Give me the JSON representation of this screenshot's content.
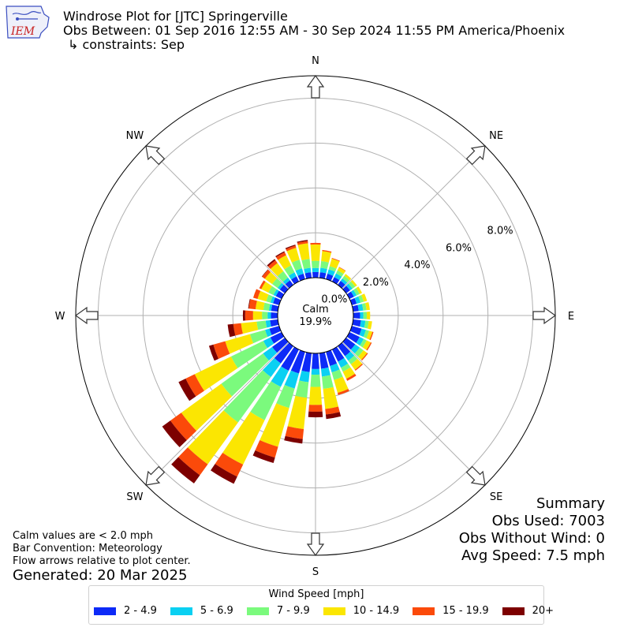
{
  "header": {
    "title": "Windrose Plot for [JTC] Springerville",
    "subtitle": "Obs Between: 01 Sep 2016 12:55 AM - 30 Sep 2024 11:55 PM America/Phoenix",
    "constraints": "↳ constraints: Sep",
    "logo_text": "IEM"
  },
  "notes": {
    "calm_note": "Calm values are < 2.0 mph",
    "bar_convention": "Bar Convention: Meteorology",
    "flow_arrows": "Flow arrows relative to plot center.",
    "generated": "Generated: 20 Mar 2025"
  },
  "summary": {
    "title": "Summary",
    "obs_used": "Obs Used: 7003",
    "obs_without_wind": "Obs Without Wind: 0",
    "avg_speed": "Avg Speed: 7.5 mph"
  },
  "chart_data": {
    "type": "windrose",
    "calm_label": "Calm",
    "calm_value": "19.9%",
    "direction_labels": [
      "N",
      "NE",
      "E",
      "SE",
      "S",
      "SW",
      "W",
      "NW"
    ],
    "radial_ticks": [
      "0.0%",
      "2.0%",
      "4.0%",
      "6.0%",
      "8.0%"
    ],
    "radial_values": [
      0,
      2,
      4,
      6,
      8
    ],
    "rmax": 9.0,
    "sectors_deg": [
      0,
      10,
      20,
      30,
      40,
      50,
      60,
      70,
      80,
      90,
      100,
      110,
      120,
      130,
      140,
      150,
      160,
      170,
      180,
      190,
      200,
      210,
      220,
      230,
      240,
      250,
      260,
      270,
      280,
      290,
      300,
      310,
      320,
      330,
      340,
      350
    ],
    "legend_title": "Wind Speed [mph]",
    "bins": [
      {
        "name": "2 - 4.9",
        "color": "#0d2af7"
      },
      {
        "name": "5 - 6.9",
        "color": "#0ad0f2"
      },
      {
        "name": "7 - 9.9",
        "color": "#7bfa7d"
      },
      {
        "name": "10 - 14.9",
        "color": "#fbe602"
      },
      {
        "name": "15 - 19.9",
        "color": "#fb4a0a"
      },
      {
        "name": "20+",
        "color": "#7d0000"
      }
    ],
    "cumulative": [
      [
        0.25,
        0.43,
        0.75,
        1.48,
        1.55,
        1.55
      ],
      [
        0.25,
        0.45,
        0.75,
        1.2,
        1.25,
        1.25
      ],
      [
        0.25,
        0.45,
        0.6,
        0.95,
        0.98,
        0.98
      ],
      [
        0.22,
        0.4,
        0.55,
        0.7,
        0.72,
        0.72
      ],
      [
        0.22,
        0.35,
        0.5,
        0.6,
        0.6,
        0.6
      ],
      [
        0.22,
        0.35,
        0.5,
        0.6,
        0.6,
        0.6
      ],
      [
        0.22,
        0.35,
        0.5,
        0.62,
        0.62,
        0.62
      ],
      [
        0.22,
        0.4,
        0.55,
        0.7,
        0.7,
        0.7
      ],
      [
        0.25,
        0.45,
        0.6,
        0.75,
        0.75,
        0.75
      ],
      [
        0.3,
        0.45,
        0.6,
        0.75,
        0.75,
        0.75
      ],
      [
        0.35,
        0.55,
        0.7,
        0.85,
        0.85,
        0.85
      ],
      [
        0.45,
        0.65,
        0.8,
        0.95,
        1.0,
        1.0
      ],
      [
        0.5,
        0.7,
        0.85,
        1.05,
        1.1,
        1.1
      ],
      [
        0.5,
        0.75,
        0.95,
        1.15,
        1.2,
        1.2
      ],
      [
        0.55,
        0.8,
        1.0,
        1.3,
        1.35,
        1.35
      ],
      [
        0.6,
        0.9,
        1.1,
        1.45,
        1.55,
        1.55
      ],
      [
        0.65,
        0.95,
        1.3,
        1.9,
        2.0,
        2.0
      ],
      [
        0.7,
        1.05,
        1.6,
        2.5,
        2.75,
        2.95
      ],
      [
        0.7,
        0.95,
        1.5,
        2.3,
        2.6,
        2.85
      ],
      [
        0.85,
        1.3,
        2.0,
        3.4,
        3.85,
        4.05
      ],
      [
        1.0,
        1.7,
        2.6,
        4.4,
        4.9,
        5.15
      ],
      [
        1.05,
        1.85,
        3.5,
        5.7,
        6.3,
        6.65
      ],
      [
        0.95,
        1.7,
        4.2,
        6.5,
        7.1,
        7.55
      ],
      [
        0.7,
        1.2,
        3.5,
        5.7,
        6.3,
        6.75
      ],
      [
        0.55,
        0.9,
        2.5,
        4.3,
        4.75,
        5.1
      ],
      [
        0.45,
        0.65,
        1.35,
        2.5,
        3.05,
        3.25
      ],
      [
        0.35,
        0.55,
        0.95,
        1.65,
        2.0,
        2.25
      ],
      [
        0.3,
        0.45,
        0.7,
        1.1,
        1.45,
        1.55
      ],
      [
        0.3,
        0.4,
        0.65,
        1.0,
        1.3,
        1.33
      ],
      [
        0.28,
        0.4,
        0.6,
        1.0,
        1.2,
        1.2
      ],
      [
        0.28,
        0.4,
        0.65,
        1.0,
        1.1,
        1.1
      ],
      [
        0.28,
        0.4,
        0.7,
        1.1,
        1.25,
        1.27
      ],
      [
        0.25,
        0.4,
        0.75,
        1.2,
        1.35,
        1.42
      ],
      [
        0.25,
        0.45,
        0.8,
        1.3,
        1.45,
        1.5
      ],
      [
        0.25,
        0.5,
        0.9,
        1.45,
        1.55,
        1.6
      ],
      [
        0.25,
        0.45,
        0.85,
        1.55,
        1.65,
        1.7
      ]
    ]
  }
}
